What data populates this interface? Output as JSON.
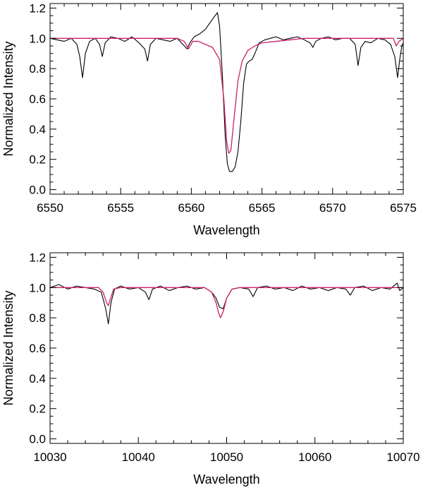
{
  "chart_data": [
    {
      "type": "line",
      "title": "",
      "xlabel": "Wavelength",
      "ylabel": "Normalized Intensity",
      "xlim": [
        6550,
        6575
      ],
      "ylim": [
        -0.03,
        1.23
      ],
      "xticks": [
        6550,
        6555,
        6560,
        6565,
        6570,
        6575
      ],
      "xtick_labels": [
        "6550",
        "6555",
        "6560",
        "6565",
        "6570",
        "6575"
      ],
      "yticks": [
        0.0,
        0.2,
        0.4,
        0.6,
        0.8,
        1.0,
        1.2
      ],
      "ytick_labels": [
        "0.0",
        "0.2",
        "0.4",
        "0.6",
        "0.8",
        "1.0",
        "1.2"
      ],
      "grid": false,
      "legend": "none",
      "series": [
        {
          "color": "#000000",
          "style": "observed",
          "x": [
            6550.0,
            6550.5,
            6551.0,
            6551.5,
            6551.9,
            6552.1,
            6552.3,
            6552.5,
            6552.8,
            6553.2,
            6553.5,
            6553.7,
            6553.9,
            6554.3,
            6554.8,
            6555.3,
            6555.8,
            6556.3,
            6556.7,
            6556.9,
            6557.1,
            6557.5,
            6558.0,
            6558.5,
            6559.0,
            6559.4,
            6559.7,
            6559.9,
            6560.2,
            6560.6,
            6561.0,
            6561.3,
            6561.6,
            6561.85,
            6562.0,
            6562.2,
            6562.4,
            6562.55,
            6562.7,
            6562.9,
            6563.1,
            6563.3,
            6563.5,
            6563.7,
            6563.9,
            6564.1,
            6564.3,
            6564.5,
            6564.8,
            6565.2,
            6565.6,
            6566.0,
            6566.5,
            6567.0,
            6567.5,
            6568.0,
            6568.4,
            6568.6,
            6568.8,
            6569.2,
            6569.7,
            6570.2,
            6570.7,
            6571.2,
            6571.6,
            6571.8,
            6572.0,
            6572.3,
            6572.7,
            6573.2,
            6573.7,
            6574.1,
            6574.4,
            6574.6,
            6574.75,
            6574.9,
            6575.0
          ],
          "y": [
            1.0,
            0.99,
            0.98,
            1.0,
            0.96,
            0.88,
            0.74,
            0.9,
            0.98,
            1.0,
            0.96,
            0.88,
            0.97,
            1.01,
            1.0,
            0.98,
            1.01,
            0.97,
            0.93,
            0.85,
            0.96,
            1.0,
            0.99,
            0.98,
            1.0,
            0.96,
            0.93,
            0.97,
            1.01,
            1.03,
            1.06,
            1.1,
            1.14,
            1.17,
            1.08,
            0.75,
            0.35,
            0.17,
            0.12,
            0.12,
            0.15,
            0.25,
            0.45,
            0.7,
            0.83,
            0.85,
            0.86,
            0.9,
            0.97,
            0.99,
            1.0,
            1.01,
            0.99,
            1.0,
            1.01,
            0.99,
            0.97,
            0.94,
            0.98,
            1.0,
            1.01,
            0.99,
            1.0,
            1.0,
            0.96,
            0.82,
            0.94,
            0.98,
            0.97,
            1.0,
            0.99,
            0.96,
            0.88,
            0.74,
            0.86,
            0.95,
            0.97
          ]
        },
        {
          "color": "#cc1f6a",
          "style": "model",
          "x": [
            6550.0,
            6555.0,
            6559.0,
            6559.5,
            6559.8,
            6560.1,
            6560.5,
            6561.0,
            6561.5,
            6562.0,
            6562.3,
            6562.5,
            6562.65,
            6562.8,
            6563.0,
            6563.3,
            6563.6,
            6564.0,
            6564.5,
            6565.0,
            6566.0,
            6567.0,
            6568.0,
            6570.0,
            6574.3,
            6574.5,
            6574.7,
            6575.0
          ],
          "y": [
            1.0,
            1.0,
            1.0,
            0.98,
            0.93,
            0.98,
            0.98,
            0.96,
            0.94,
            0.86,
            0.6,
            0.32,
            0.24,
            0.26,
            0.45,
            0.72,
            0.85,
            0.92,
            0.95,
            0.97,
            0.98,
            0.99,
            1.0,
            1.0,
            1.0,
            0.95,
            0.98,
            1.0
          ]
        }
      ]
    },
    {
      "type": "line",
      "title": "",
      "xlabel": "Wavelength",
      "ylabel": "Normalized Intensity",
      "xlim": [
        10030,
        10070
      ],
      "ylim": [
        -0.03,
        1.23
      ],
      "xticks": [
        10030,
        10040,
        10050,
        10060,
        10070
      ],
      "xtick_labels": [
        "10030",
        "10040",
        "10050",
        "10060",
        "10070"
      ],
      "yticks": [
        0.0,
        0.2,
        0.4,
        0.6,
        0.8,
        1.0,
        1.2
      ],
      "ytick_labels": [
        "0.0",
        "0.2",
        "0.4",
        "0.6",
        "0.8",
        "1.0",
        "1.2"
      ],
      "grid": false,
      "legend": "none",
      "series": [
        {
          "color": "#000000",
          "style": "observed",
          "x": [
            10030.0,
            10031.0,
            10032.0,
            10033.0,
            10034.0,
            10035.0,
            10035.8,
            10036.3,
            10036.6,
            10036.9,
            10037.3,
            10038.0,
            10039.0,
            10040.0,
            10040.8,
            10041.2,
            10041.6,
            10042.5,
            10043.5,
            10044.5,
            10045.5,
            10046.5,
            10047.5,
            10048.3,
            10048.8,
            10049.2,
            10049.6,
            10050.0,
            10050.6,
            10051.5,
            10052.5,
            10053.0,
            10053.5,
            10054.5,
            10055.5,
            10056.5,
            10057.5,
            10058.5,
            10059.5,
            10060.5,
            10061.5,
            10062.5,
            10063.5,
            10064.0,
            10064.5,
            10065.5,
            10066.5,
            10067.5,
            10068.5,
            10069.3,
            10069.6,
            10070.0
          ],
          "y": [
            1.0,
            1.02,
            0.99,
            1.01,
            1.0,
            0.99,
            0.97,
            0.86,
            0.76,
            0.9,
            0.99,
            1.01,
            0.99,
            1.0,
            0.97,
            0.92,
            0.99,
            1.01,
            0.98,
            1.0,
            1.01,
            0.99,
            1.0,
            0.97,
            0.93,
            0.87,
            0.86,
            0.93,
            0.99,
            1.0,
            0.99,
            0.94,
            1.0,
            1.01,
            0.99,
            1.0,
            0.98,
            1.01,
            0.99,
            1.0,
            0.98,
            1.0,
            0.99,
            0.95,
            1.0,
            1.01,
            0.98,
            1.0,
            0.99,
            1.03,
            0.98,
            1.0
          ]
        },
        {
          "color": "#cc1f6a",
          "style": "model",
          "x": [
            10030.0,
            10035.5,
            10036.0,
            10036.4,
            10036.6,
            10036.8,
            10037.2,
            10038.0,
            10047.5,
            10048.3,
            10048.8,
            10049.1,
            10049.3,
            10049.6,
            10050.0,
            10050.6,
            10051.5,
            10070.0
          ],
          "y": [
            1.0,
            1.0,
            0.97,
            0.9,
            0.88,
            0.92,
            0.99,
            1.0,
            1.0,
            0.97,
            0.9,
            0.83,
            0.8,
            0.84,
            0.93,
            0.99,
            1.0,
            1.0
          ]
        }
      ]
    }
  ]
}
